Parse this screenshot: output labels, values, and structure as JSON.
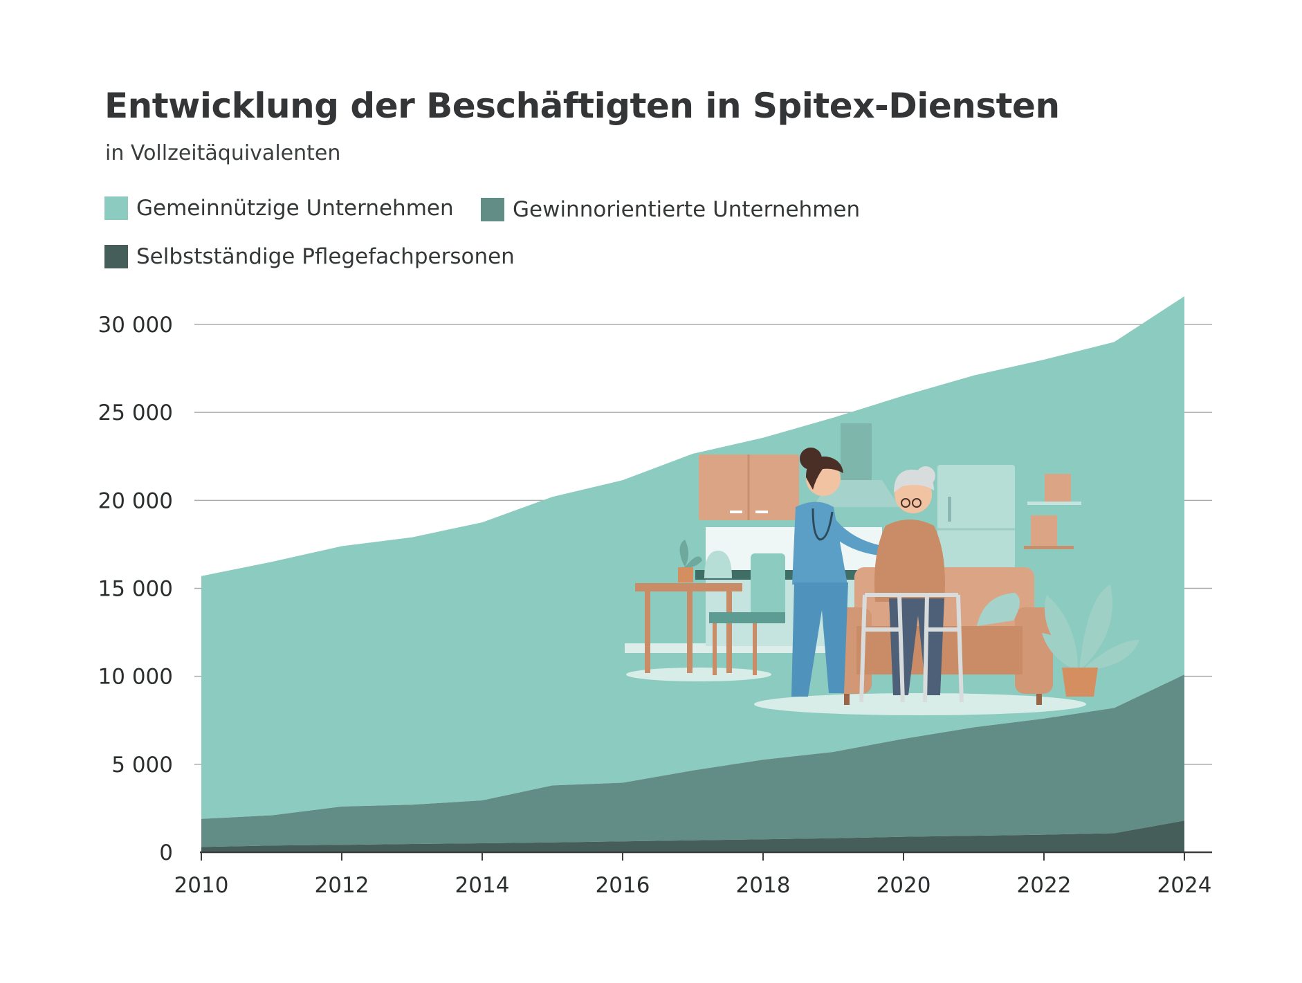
{
  "colors": {
    "background": "#ffffff",
    "gridline": "#a9acad",
    "axis": "#3a3d3e",
    "text": "#2f3333"
  },
  "illustration": {
    "description_icon": "nurse-helping-elderly-woman-with-walker-illustration"
  },
  "chart_data": {
    "type": "area",
    "stacked": true,
    "title": "Entwicklung der Beschäftigten in Spitex-Diensten",
    "subtitle": "in Vollzeitäquivalenten",
    "x": [
      2010,
      2011,
      2012,
      2013,
      2014,
      2015,
      2016,
      2017,
      2018,
      2019,
      2020,
      2021,
      2022,
      2023,
      2024
    ],
    "xticks": [
      "2010",
      "2012",
      "2014",
      "2016",
      "2018",
      "2020",
      "2022",
      "2024"
    ],
    "yticks": [
      "0",
      "5 000",
      "10 000",
      "15 000",
      "20 000",
      "25 000",
      "30 000"
    ],
    "ylim": [
      0,
      31700
    ],
    "grid": true,
    "legend_position": "top-left",
    "series": [
      {
        "name": "Selbstständige Pflegefachpersonen",
        "color": "#455e5a",
        "values": [
          300,
          380,
          420,
          470,
          510,
          560,
          620,
          680,
          740,
          800,
          880,
          940,
          1000,
          1080,
          1800
        ]
      },
      {
        "name": "Gewinnorientierte Unternehmen",
        "color": "#628d86",
        "values": [
          1600,
          1720,
          2180,
          2230,
          2440,
          3240,
          3330,
          3970,
          4520,
          4900,
          5570,
          6160,
          6600,
          7120,
          8300
        ]
      },
      {
        "name": "Gemeinnützige Unternehmen",
        "color": "#8ccbc0",
        "values": [
          13800,
          14400,
          14800,
          15200,
          15800,
          16400,
          17200,
          18000,
          18300,
          19000,
          19500,
          20000,
          20400,
          20800,
          21500
        ]
      }
    ]
  }
}
